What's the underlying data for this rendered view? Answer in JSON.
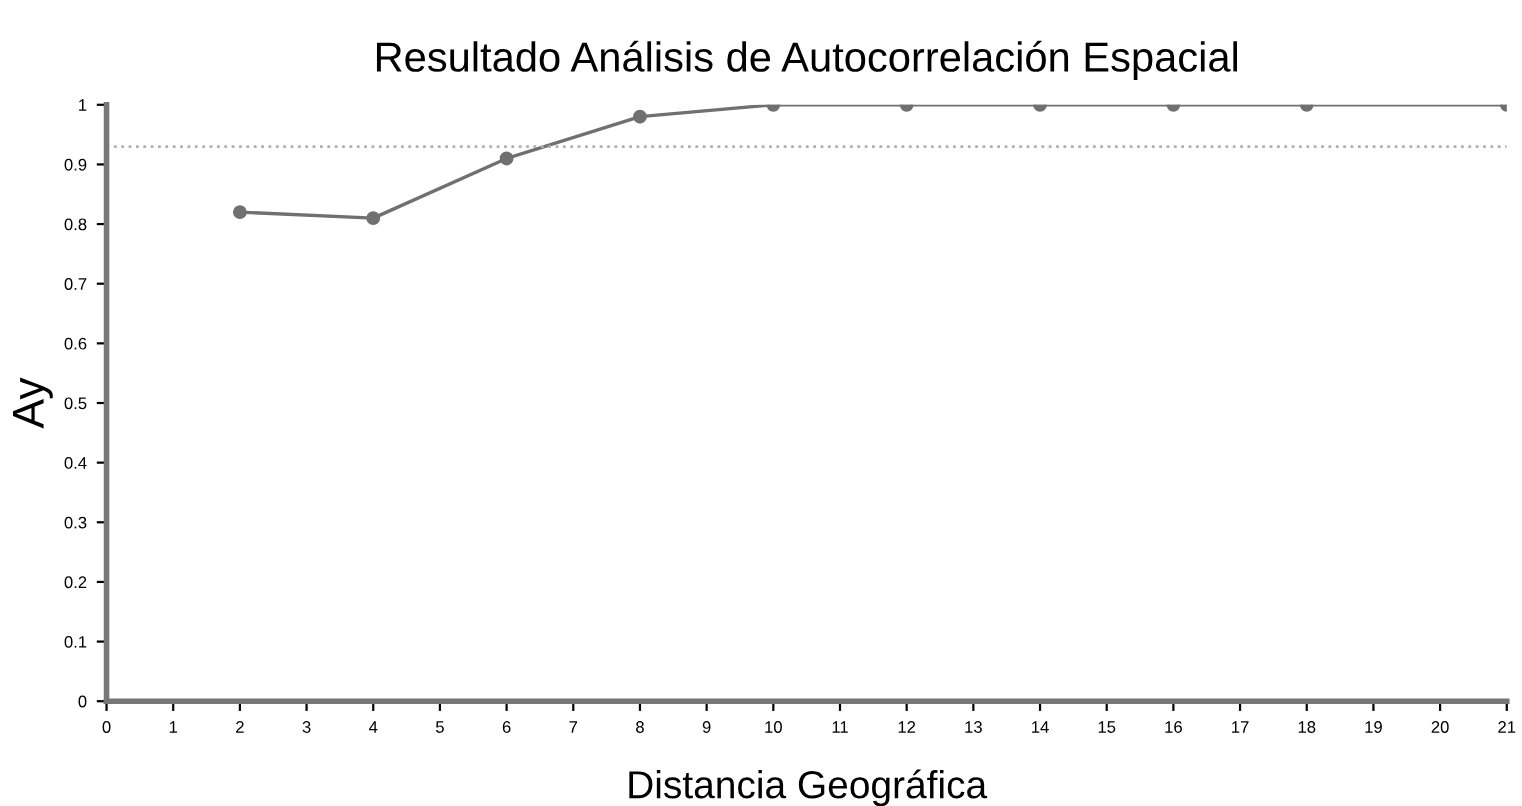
{
  "chart_data": {
    "type": "line",
    "title": "Resultado Análisis de Autocorrelación Espacial",
    "xlabel": "Distancia Geográfica",
    "ylabel": "Ay",
    "x": [
      2,
      4,
      6,
      8,
      10,
      12,
      14,
      16,
      18,
      21
    ],
    "series": [
      {
        "color": "#707070",
        "values": [
          0.82,
          0.81,
          0.91,
          0.98,
          1.0,
          1.0,
          1.0,
          1.0,
          1.0,
          1.0
        ]
      }
    ],
    "xlim": [
      0,
      21
    ],
    "xticks": [
      0,
      1,
      2,
      3,
      4,
      5,
      6,
      7,
      8,
      9,
      10,
      11,
      12,
      13,
      14,
      15,
      16,
      17,
      18,
      19,
      20,
      21
    ],
    "ylim": [
      0,
      1
    ],
    "yticks": [
      0,
      0.1,
      0.2,
      0.3,
      0.4,
      0.5,
      0.6,
      0.7,
      0.8,
      0.9,
      1
    ],
    "ref_lines": [
      {
        "axis": "y",
        "value": 0.93,
        "color": "#b0b0b0",
        "line_style": "dotted"
      }
    ],
    "marker": "circle",
    "line_style": "solid",
    "grid": false
  }
}
